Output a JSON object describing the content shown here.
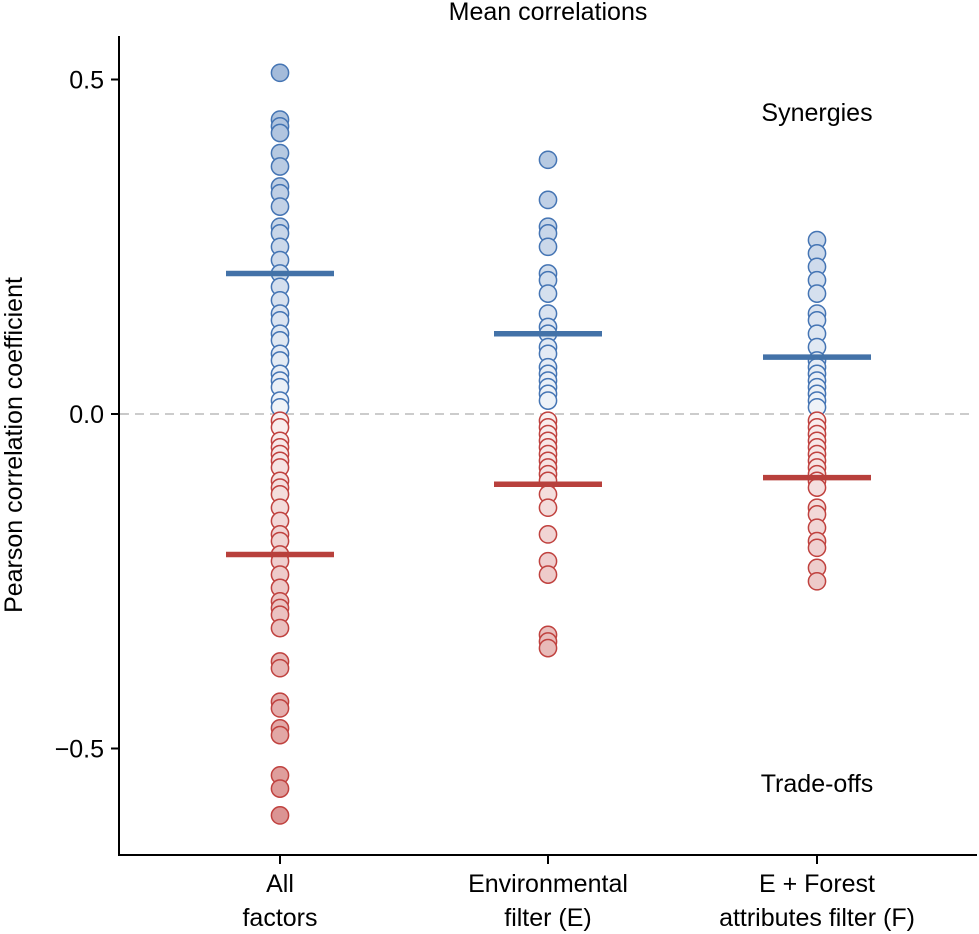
{
  "chart_data": {
    "type": "scatter",
    "title": "Mean correlations",
    "xlabel": "",
    "ylabel": "Pearson correlation coefficient",
    "ylim": [
      -0.66,
      0.56
    ],
    "yticks": [
      0.5,
      0.0,
      -0.5
    ],
    "ytick_labels": [
      "0.5",
      "0.0",
      "−0.5"
    ],
    "reference_line": 0,
    "annotations": {
      "top": "Synergies",
      "bottom": "Trade-offs"
    },
    "colors": {
      "positive_stroke": "#4575b4",
      "positive_mean": "#4372a8",
      "negative_stroke": "#c0423f",
      "negative_mean": "#b8403c",
      "zero_line": "#bbbbbb",
      "axis": "#000000"
    },
    "groups": [
      {
        "label_lines": [
          "All",
          "factors"
        ],
        "positive_mean": 0.21,
        "negative_mean": -0.21,
        "values": [
          0.51,
          0.44,
          0.43,
          0.42,
          0.39,
          0.37,
          0.34,
          0.33,
          0.31,
          0.28,
          0.27,
          0.25,
          0.23,
          0.21,
          0.19,
          0.17,
          0.15,
          0.14,
          0.12,
          0.11,
          0.09,
          0.08,
          0.06,
          0.05,
          0.04,
          0.02,
          0.01,
          -0.01,
          -0.02,
          -0.04,
          -0.05,
          -0.06,
          -0.07,
          -0.08,
          -0.1,
          -0.11,
          -0.12,
          -0.14,
          -0.16,
          -0.18,
          -0.19,
          -0.21,
          -0.22,
          -0.24,
          -0.26,
          -0.28,
          -0.29,
          -0.3,
          -0.32,
          -0.37,
          -0.38,
          -0.43,
          -0.44,
          -0.47,
          -0.48,
          -0.54,
          -0.56,
          -0.6
        ]
      },
      {
        "label_lines": [
          "Environmental",
          "filter (E)"
        ],
        "positive_mean": 0.12,
        "negative_mean": -0.105,
        "values": [
          0.38,
          0.32,
          0.28,
          0.27,
          0.25,
          0.21,
          0.2,
          0.18,
          0.15,
          0.13,
          0.12,
          0.1,
          0.09,
          0.07,
          0.06,
          0.05,
          0.04,
          0.03,
          0.02,
          -0.01,
          -0.02,
          -0.03,
          -0.04,
          -0.05,
          -0.06,
          -0.07,
          -0.08,
          -0.09,
          -0.1,
          -0.12,
          -0.14,
          -0.18,
          -0.22,
          -0.24,
          -0.33,
          -0.34,
          -0.35
        ]
      },
      {
        "label_lines": [
          "E + Forest",
          "attributes filter (F)"
        ],
        "positive_mean": 0.085,
        "negative_mean": -0.095,
        "values": [
          0.26,
          0.24,
          0.22,
          0.2,
          0.18,
          0.15,
          0.14,
          0.12,
          0.1,
          0.08,
          0.07,
          0.06,
          0.05,
          0.04,
          0.03,
          0.02,
          0.01,
          -0.01,
          -0.02,
          -0.03,
          -0.04,
          -0.05,
          -0.06,
          -0.07,
          -0.08,
          -0.09,
          -0.1,
          -0.11,
          -0.14,
          -0.15,
          -0.17,
          -0.19,
          -0.2,
          -0.23,
          -0.25
        ]
      }
    ]
  }
}
